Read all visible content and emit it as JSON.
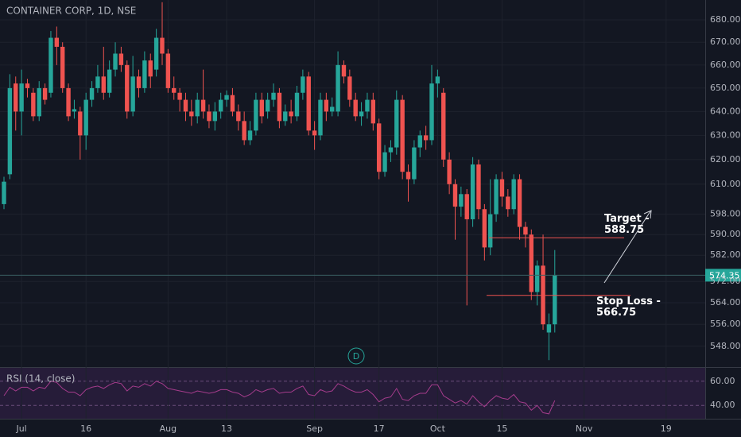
{
  "chart_data": {
    "type": "candlestick",
    "title": "CONTAINER CORP, 1D, NSE",
    "marker": "D",
    "categories": [
      null,
      null,
      null,
      "Jul",
      null,
      null,
      null,
      null,
      null,
      null,
      null,
      null,
      null,
      null,
      "16",
      null,
      null,
      null,
      null,
      null,
      null,
      null,
      null,
      null,
      null,
      null,
      null,
      null,
      "Aug",
      null,
      null,
      null,
      null,
      null,
      null,
      null,
      null,
      null,
      "13",
      null,
      null,
      null,
      null,
      null,
      null,
      null,
      null,
      null,
      null,
      null,
      null,
      null,
      null,
      "Sep",
      null,
      null,
      null,
      null,
      null,
      null,
      null,
      null,
      null,
      null,
      "17",
      null,
      null,
      null,
      null,
      null,
      null,
      null,
      null,
      null,
      "Oct",
      null,
      null,
      null,
      null,
      null,
      null,
      null,
      null,
      null,
      null,
      "15",
      null,
      null,
      null,
      null,
      null,
      null,
      null,
      null,
      null,
      null,
      null,
      null,
      null,
      "Nov",
      null,
      null,
      null,
      null,
      null,
      null,
      null,
      null,
      null,
      null,
      null,
      null,
      null,
      "19"
    ],
    "open": [
      602,
      614,
      652,
      640,
      652,
      648,
      638,
      650,
      648,
      672,
      668,
      650,
      640,
      640,
      630,
      645,
      650,
      655,
      648,
      658,
      665,
      660,
      640,
      655,
      650,
      662,
      658,
      672,
      665,
      650,
      648,
      645,
      640,
      638,
      645,
      640,
      636,
      640,
      645,
      647,
      640,
      636,
      628,
      632,
      645,
      640,
      645,
      648,
      636,
      640,
      638,
      648,
      655,
      632,
      630,
      645,
      640,
      640,
      660,
      655,
      645,
      638,
      640,
      645,
      635,
      615,
      623,
      625,
      645,
      615,
      612,
      625,
      630,
      628,
      652,
      648,
      620,
      610,
      601,
      606,
      596,
      618,
      600,
      585,
      598,
      612,
      605,
      600,
      612,
      593,
      590,
      568,
      578,
      553,
      556,
      null,
      null,
      null,
      null,
      null,
      null,
      null,
      null,
      null,
      null,
      null,
      null,
      null,
      null,
      null,
      null,
      null,
      null,
      null
    ],
    "high": [
      613,
      656,
      655,
      658,
      654,
      650,
      653,
      652,
      675,
      677,
      670,
      652,
      645,
      642,
      648,
      653,
      660,
      668,
      662,
      670,
      668,
      662,
      664,
      658,
      666,
      665,
      676,
      688,
      667,
      655,
      650,
      648,
      645,
      648,
      658,
      643,
      644,
      648,
      649,
      650,
      643,
      640,
      636,
      648,
      648,
      648,
      652,
      650,
      643,
      645,
      651,
      658,
      657,
      636,
      648,
      648,
      646,
      666,
      662,
      658,
      648,
      644,
      648,
      648,
      637,
      626,
      628,
      649,
      647,
      618,
      628,
      632,
      634,
      660,
      658,
      650,
      623,
      612,
      609,
      608,
      621,
      620,
      602,
      612,
      614,
      615,
      608,
      614,
      614,
      595,
      592,
      580,
      590,
      560,
      584,
      null,
      null,
      null,
      null,
      null,
      null,
      null,
      null,
      null,
      null,
      null,
      null,
      null,
      null,
      null,
      null,
      null,
      null,
      null
    ],
    "low": [
      600,
      612,
      632,
      630,
      646,
      636,
      636,
      643,
      646,
      660,
      648,
      636,
      637,
      620,
      624,
      642,
      648,
      645,
      646,
      655,
      657,
      637,
      638,
      646,
      648,
      650,
      655,
      660,
      648,
      645,
      640,
      636,
      634,
      635,
      637,
      633,
      632,
      637,
      642,
      638,
      632,
      626,
      626,
      630,
      635,
      637,
      642,
      633,
      634,
      635,
      636,
      645,
      630,
      624,
      628,
      636,
      638,
      638,
      652,
      642,
      636,
      634,
      637,
      632,
      612,
      613,
      619,
      622,
      612,
      603,
      610,
      621,
      624,
      626,
      646,
      617,
      606,
      588,
      597,
      563,
      593,
      596,
      580,
      582,
      595,
      601,
      597,
      598,
      588,
      585,
      565,
      563,
      554,
      543,
      553,
      null,
      null,
      null,
      null,
      null,
      null,
      null,
      null,
      null,
      null,
      null,
      null,
      null,
      null,
      null,
      null,
      null,
      null,
      null
    ],
    "close": [
      611,
      650,
      640,
      652,
      650,
      638,
      650,
      645,
      672,
      668,
      650,
      638,
      641,
      630,
      645,
      650,
      655,
      648,
      658,
      665,
      660,
      640,
      655,
      650,
      662,
      655,
      672,
      665,
      650,
      648,
      645,
      640,
      638,
      645,
      640,
      636,
      640,
      645,
      647,
      640,
      636,
      628,
      632,
      645,
      638,
      645,
      648,
      636,
      640,
      638,
      648,
      655,
      632,
      630,
      645,
      640,
      642,
      660,
      655,
      645,
      638,
      640,
      645,
      635,
      615,
      623,
      625,
      645,
      615,
      612,
      625,
      630,
      628,
      652,
      655,
      620,
      610,
      601,
      606,
      596,
      618,
      600,
      585,
      598,
      612,
      605,
      600,
      612,
      593,
      590,
      568,
      578,
      556,
      556,
      574.35,
      null,
      null,
      null,
      null,
      null,
      null,
      null,
      null,
      null,
      null,
      null,
      null,
      null,
      null,
      null,
      null,
      null,
      null,
      null
    ],
    "up_color": "#26a69a",
    "down_color": "#ef5350",
    "log_scale": true,
    "grid": true,
    "ylim": [
      540.5,
      689
    ],
    "yticks": [
      {
        "value": 548,
        "label": "548.00"
      },
      {
        "value": 556,
        "label": "556.00"
      },
      {
        "value": 564,
        "label": "564.00"
      },
      {
        "value": 572,
        "label": "572.00"
      },
      {
        "value": 582,
        "label": "582.00"
      },
      {
        "value": 590,
        "label": "590.00"
      },
      {
        "value": 598,
        "label": "598.00"
      },
      {
        "value": 610,
        "label": "610.00"
      },
      {
        "value": 620,
        "label": "620.00"
      },
      {
        "value": 630,
        "label": "630.00"
      },
      {
        "value": 640,
        "label": "640.00"
      },
      {
        "value": 650,
        "label": "650.00"
      },
      {
        "value": 660,
        "label": "660.00"
      },
      {
        "value": 670,
        "label": "670.00"
      },
      {
        "value": 680,
        "label": "680.00"
      }
    ],
    "last_price": 574.35,
    "annotations": [
      {
        "text": "Target -",
        "level": 588.75,
        "color": "#ef5350"
      },
      {
        "text": "Stop Loss -",
        "level": 566.75,
        "color": "#ef5350"
      }
    ],
    "rsi": {
      "title": "RSI (14, close)",
      "color": "#a53c8c",
      "values": [
        48,
        55,
        52,
        55,
        55,
        52,
        55,
        54,
        60,
        59,
        54,
        51,
        51,
        48,
        53,
        55,
        56,
        54,
        57,
        59,
        58,
        52,
        56,
        55,
        58,
        56,
        60,
        58,
        54,
        53,
        52,
        51,
        50,
        52,
        51,
        50,
        51,
        53,
        53,
        51,
        50,
        47,
        49,
        53,
        51,
        53,
        54,
        50,
        51,
        51,
        54,
        56,
        49,
        48,
        53,
        51,
        52,
        58,
        56,
        53,
        51,
        51,
        53,
        49,
        43,
        46,
        47,
        54,
        45,
        44,
        48,
        50,
        50,
        57,
        57,
        48,
        45,
        42,
        44,
        41,
        48,
        43,
        39,
        44,
        48,
        46,
        45,
        49,
        43,
        42,
        36,
        40,
        34,
        33,
        44,
        null,
        null,
        null,
        null,
        null,
        null,
        null,
        null,
        null,
        null,
        null,
        null,
        null,
        null,
        null,
        null,
        null,
        null,
        null
      ],
      "ylim": [
        29,
        71
      ],
      "yticks": [
        {
          "value": 60,
          "label": "60.00"
        },
        {
          "value": 40,
          "label": "40.00"
        }
      ]
    }
  }
}
